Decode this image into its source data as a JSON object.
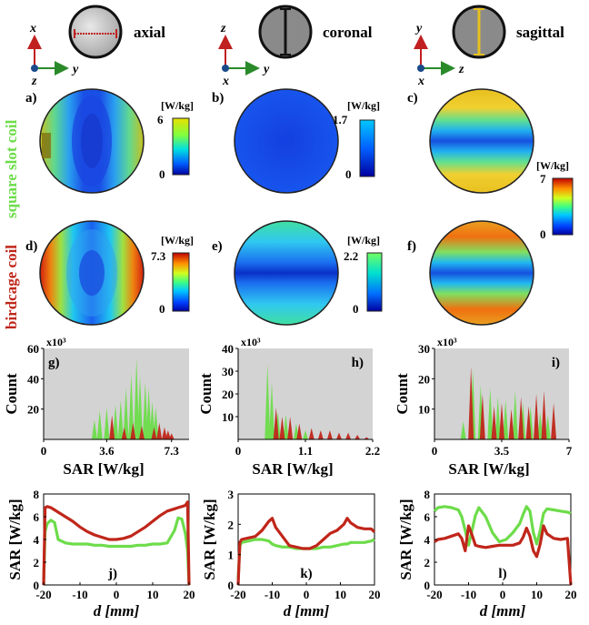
{
  "views": [
    {
      "name": "axial",
      "axes": {
        "up": "x",
        "right": "y",
        "out": "z"
      }
    },
    {
      "name": "coronal",
      "axes": {
        "up": "z",
        "right": "y",
        "out": "x"
      }
    },
    {
      "name": "sagittal",
      "axes": {
        "up": "y",
        "right": "z",
        "out": "x"
      }
    }
  ],
  "row_labels": {
    "square_slot": "square slot coil",
    "birdcage": "birdcage coil"
  },
  "colors": {
    "square_slot": "#6ddc4a",
    "birdcage": "#c0261a",
    "hist_bg": "#d3d3d3"
  },
  "colorbars": [
    {
      "unit": "[W/kg]",
      "max": "6",
      "min": "0",
      "panel": "a"
    },
    {
      "unit": "[W/kg]",
      "max": "1.7",
      "min": "0",
      "panel": "b"
    },
    {
      "unit": "[W/kg]",
      "max": "7",
      "min": "0",
      "panel": "c,f"
    },
    {
      "unit": "[W/kg]",
      "max": "7.3",
      "min": "0",
      "panel": "d"
    },
    {
      "unit": "[W/kg]",
      "max": "2.2",
      "min": "0",
      "panel": "e"
    }
  ],
  "map_panels": [
    "a)",
    "b)",
    "c)",
    "d)",
    "e)",
    "f)"
  ],
  "chart_data": [
    {
      "type": "bar",
      "panel": "g)",
      "title": "",
      "xlabel": "SAR [W/kg]",
      "ylabel": "Count",
      "scale_label": "x10³",
      "xlim": [
        0,
        8.3
      ],
      "ylim": [
        0,
        60
      ],
      "xticks": [
        "0",
        "3.6",
        "7.3"
      ],
      "yticks": [
        "20",
        "40",
        "60"
      ],
      "series": [
        {
          "name": "square slot coil",
          "x": [
            2.9,
            3.2,
            3.6,
            4.1,
            4.4,
            4.7,
            5.0,
            5.3,
            5.5,
            5.8,
            6.0,
            6.2,
            6.4
          ],
          "values": [
            13,
            19,
            21,
            23,
            26,
            34,
            43,
            54,
            42,
            38,
            34,
            25,
            21
          ]
        },
        {
          "name": "birdcage coil",
          "x": [
            3.9,
            4.6,
            5.1,
            5.6,
            6.3,
            6.6,
            6.9,
            7.1,
            7.3
          ],
          "values": [
            16,
            8,
            11,
            9,
            8,
            11,
            8,
            6,
            4
          ]
        }
      ]
    },
    {
      "type": "bar",
      "panel": "h)",
      "title": "",
      "xlabel": "SAR [W/kg]",
      "ylabel": "Count",
      "scale_label": "x10³",
      "xlim": [
        0,
        2.2
      ],
      "ylim": [
        0,
        40
      ],
      "xticks": [
        "0",
        "1.1",
        "2.2"
      ],
      "yticks": [
        "10",
        "20",
        "30",
        "40"
      ],
      "series": [
        {
          "name": "square slot coil",
          "x": [
            0.48,
            0.55,
            0.65,
            0.78,
            0.95,
            1.1
          ],
          "values": [
            33,
            25,
            12,
            11,
            7,
            4
          ]
        },
        {
          "name": "birdcage coil",
          "x": [
            0.62,
            0.72,
            0.85,
            1.0,
            1.2,
            1.35,
            1.5,
            1.65,
            1.8,
            1.95,
            2.1
          ],
          "values": [
            14,
            10,
            10,
            7,
            5,
            4,
            4,
            3,
            3,
            2,
            1
          ]
        }
      ]
    },
    {
      "type": "bar",
      "panel": "i)",
      "title": "",
      "xlabel": "SAR [W/kg]",
      "ylabel": "Count",
      "scale_label": "x10³",
      "xlim": [
        0,
        7
      ],
      "ylim": [
        0,
        30
      ],
      "xticks": [
        "0",
        "3.5",
        "7"
      ],
      "yticks": [
        "10",
        "20",
        "30"
      ],
      "series": [
        {
          "name": "square slot coil",
          "x": [
            1.5,
            2.0,
            2.4,
            2.9,
            3.3,
            3.7,
            4.2,
            4.6,
            5.0,
            5.5,
            5.9
          ],
          "values": [
            6,
            23,
            18,
            17,
            14,
            13,
            16,
            12,
            11,
            9,
            8
          ]
        },
        {
          "name": "birdcage coil",
          "x": [
            1.9,
            2.5,
            3.1,
            3.5,
            4.0,
            4.5,
            4.9,
            5.3,
            5.7,
            6.2
          ],
          "values": [
            24,
            15,
            11,
            12,
            10,
            14,
            11,
            15,
            16,
            12
          ]
        }
      ]
    },
    {
      "type": "line",
      "panel": "j)",
      "xlabel": "d [mm]",
      "ylabel": "SAR [W/kg]",
      "xlim": [
        -20,
        20
      ],
      "ylim": [
        0,
        8
      ],
      "xticks": [
        "-20",
        "-10",
        "0",
        "10",
        "20"
      ],
      "yticks": [
        "0",
        "2",
        "4",
        "6",
        "8"
      ],
      "x": [
        -20,
        -19.6,
        -19,
        -18,
        -17,
        -16,
        -14,
        -12,
        -10,
        -8,
        -6,
        -4,
        -2,
        0,
        2,
        4,
        6,
        8,
        10,
        12,
        14,
        16,
        17,
        18,
        19,
        19.6,
        20
      ],
      "series": [
        {
          "name": "square slot coil",
          "values": [
            0,
            4.7,
            5.4,
            5.7,
            5.5,
            4.0,
            3.7,
            3.6,
            3.6,
            3.6,
            3.5,
            3.5,
            3.4,
            3.4,
            3.4,
            3.4,
            3.5,
            3.5,
            3.6,
            3.6,
            3.7,
            4.8,
            5.9,
            5.8,
            4.5,
            3.0,
            0
          ]
        },
        {
          "name": "birdcage coil",
          "values": [
            0,
            6.8,
            6.9,
            6.8,
            6.6,
            6.4,
            6.0,
            5.6,
            5.1,
            4.7,
            4.4,
            4.2,
            4.0,
            4.0,
            4.1,
            4.3,
            4.7,
            5.1,
            5.6,
            6.1,
            6.5,
            6.7,
            6.8,
            6.9,
            7.0,
            7.3,
            0
          ]
        }
      ]
    },
    {
      "type": "line",
      "panel": "k)",
      "xlabel": "d [mm]",
      "ylabel": "SAR [W/kg]",
      "xlim": [
        -20,
        20
      ],
      "ylim": [
        0,
        3
      ],
      "xticks": [
        "-20",
        "-10",
        "0",
        "10",
        "20"
      ],
      "yticks": [
        "0",
        "1",
        "2",
        "3"
      ],
      "x": [
        -20,
        -19.5,
        -19,
        -17,
        -15,
        -13,
        -11,
        -10,
        -9,
        -7,
        -5,
        -3,
        -1,
        0,
        1,
        3,
        5,
        7,
        9,
        11,
        12,
        13,
        15,
        17,
        19,
        20
      ],
      "series": [
        {
          "name": "square slot coil",
          "values": [
            0.2,
            1.3,
            1.4,
            1.45,
            1.5,
            1.5,
            1.45,
            1.35,
            1.3,
            1.25,
            1.25,
            1.2,
            1.2,
            1.2,
            1.2,
            1.2,
            1.25,
            1.25,
            1.3,
            1.35,
            1.35,
            1.4,
            1.4,
            1.4,
            1.45,
            1.5
          ]
        },
        {
          "name": "birdcage coil",
          "values": [
            0,
            1.4,
            1.5,
            1.55,
            1.6,
            1.8,
            2.1,
            2.2,
            1.9,
            1.6,
            1.3,
            1.25,
            1.2,
            1.2,
            1.2,
            1.3,
            1.5,
            1.7,
            1.8,
            2.0,
            2.2,
            2.05,
            1.9,
            1.85,
            1.85,
            1.75
          ]
        }
      ]
    },
    {
      "type": "line",
      "panel": "l)",
      "xlabel": "d [mm]",
      "ylabel": "SAR [W/kg]",
      "xlim": [
        -20,
        20
      ],
      "ylim": [
        0,
        8
      ],
      "xticks": [
        "-20",
        "-10",
        "0",
        "10",
        "20"
      ],
      "yticks": [
        "0",
        "2",
        "4",
        "6",
        "8"
      ],
      "x": [
        -20,
        -19,
        -17,
        -15,
        -13,
        -12,
        -11,
        -10,
        -9,
        -8,
        -7,
        -5,
        -3,
        -1,
        1,
        3,
        5,
        6,
        7,
        8,
        9,
        10,
        11,
        12,
        13,
        15,
        17,
        19,
        20
      ],
      "series": [
        {
          "name": "square slot coil",
          "values": [
            6.5,
            6.8,
            6.9,
            6.8,
            6.6,
            6.0,
            4.8,
            3.5,
            4.8,
            6.1,
            6.8,
            6.0,
            4.6,
            3.8,
            4.0,
            4.6,
            5.4,
            6.2,
            6.9,
            6.5,
            4.6,
            3.6,
            4.8,
            6.3,
            6.7,
            6.6,
            6.5,
            6.4,
            6.3
          ]
        },
        {
          "name": "birdcage coil",
          "values": [
            3.8,
            4.0,
            4.1,
            4.3,
            4.5,
            4.1,
            3.0,
            5.2,
            4.4,
            3.5,
            3.4,
            3.3,
            3.4,
            3.5,
            3.5,
            3.5,
            3.7,
            4.2,
            5.0,
            4.3,
            3.0,
            2.5,
            3.6,
            5.2,
            4.5,
            4.1,
            4.0,
            4.1,
            0
          ]
        }
      ]
    }
  ]
}
